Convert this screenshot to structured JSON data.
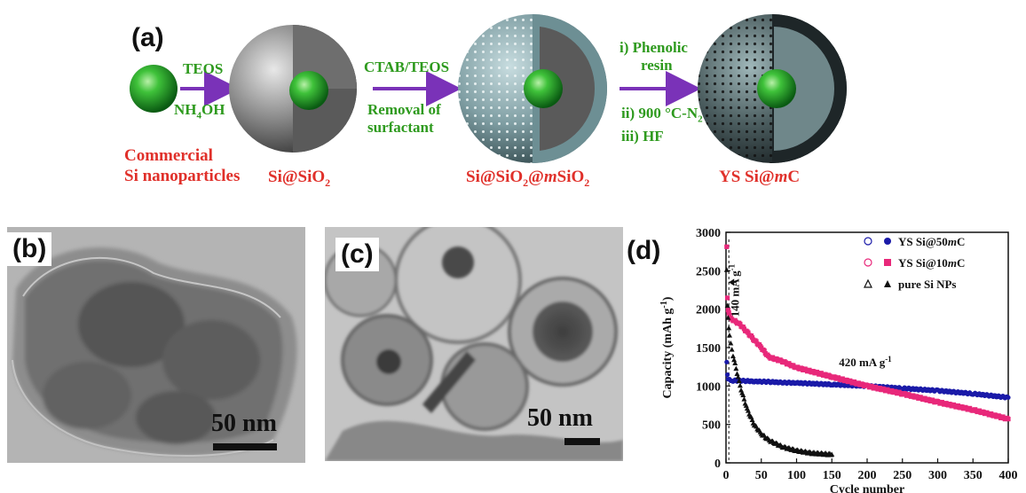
{
  "panel_a": {
    "label": "(a)",
    "step1": {
      "top": "TEOS",
      "bottom_main": "NH",
      "bottom_sub": "4",
      "bottom_tail": "OH"
    },
    "step2": {
      "top": "CTAB/TEOS",
      "bottom_line1": "Removal of",
      "bottom_line2": "surfactant"
    },
    "step3": {
      "line1": "i) Phenolic",
      "line2": "resin",
      "line3_main": "ii) 900 °C-N",
      "line3_sub": "2",
      "line4": "iii) HF"
    },
    "names": {
      "start_line1": "Commercial",
      "start_line2": "Si nanoparticles",
      "p1_main": "Si@SiO",
      "p1_sub": "2",
      "p2_a": "Si@SiO",
      "p2_sub": "2",
      "p2_b": "@",
      "p2_it": "m",
      "p2_c": "SiO",
      "p2_sub2": "2",
      "p3_a": "YS Si@",
      "p3_it": "m",
      "p3_b": "C"
    },
    "colors": {
      "green_text": "#2e9a1e",
      "red_text": "#e0302a",
      "arrow": "#7a32b8"
    }
  },
  "panel_b": {
    "label": "(b)",
    "scale": "50 nm"
  },
  "panel_c": {
    "label": "(c)",
    "scale": "50 nm"
  },
  "panel_d": {
    "label": "(d)"
  },
  "chart_data": {
    "type": "scatter",
    "xlabel": "Cycle number",
    "ylabel": "Capacity (mAh g",
    "ylabel_sup": "-1",
    "ylabel_tail": ")",
    "xlim": [
      0,
      400
    ],
    "ylim": [
      0,
      3000
    ],
    "xticks": [
      0,
      50,
      100,
      150,
      200,
      250,
      300,
      350,
      400
    ],
    "yticks": [
      0,
      500,
      1000,
      1500,
      2000,
      2500,
      3000
    ],
    "annotations": [
      {
        "text": "140 mA g",
        "sup": "-1"
      },
      {
        "text": "420 mA g",
        "sup": "-1"
      }
    ],
    "series": [
      {
        "name": "YS Si@50mC",
        "name_a": "YS Si@50",
        "name_it": "m",
        "name_b": "C",
        "color": "#1a1aa8",
        "marker": "circle",
        "x": [
          1,
          2,
          3,
          5,
          10,
          20,
          40,
          60,
          80,
          100,
          150,
          200,
          250,
          300,
          350,
          400
        ],
        "y": [
          1300,
          1150,
          1100,
          1080,
          1070,
          1070,
          1060,
          1055,
          1045,
          1040,
          1020,
          1000,
          970,
          940,
          900,
          850
        ]
      },
      {
        "name": "YS Si@10mC",
        "name_a": "YS Si@10",
        "name_it": "m",
        "name_b": "C",
        "color": "#e8287a",
        "marker": "square",
        "x": [
          1,
          2,
          3,
          4,
          5,
          10,
          20,
          30,
          40,
          50,
          60,
          80,
          100,
          150,
          200,
          250,
          300,
          350,
          400
        ],
        "y": [
          2800,
          2150,
          2000,
          1950,
          1910,
          1860,
          1800,
          1700,
          1600,
          1500,
          1380,
          1320,
          1240,
          1120,
          1000,
          900,
          790,
          690,
          570
        ]
      },
      {
        "name": "pure Si NPs",
        "color": "#111111",
        "marker": "triangle",
        "x": [
          1,
          2,
          3,
          4,
          5,
          10,
          20,
          30,
          40,
          50,
          60,
          80,
          100,
          120,
          150
        ],
        "y": [
          2500,
          2050,
          1900,
          1750,
          1650,
          1400,
          1000,
          700,
          500,
          380,
          300,
          210,
          160,
          130,
          110
        ]
      }
    ]
  }
}
